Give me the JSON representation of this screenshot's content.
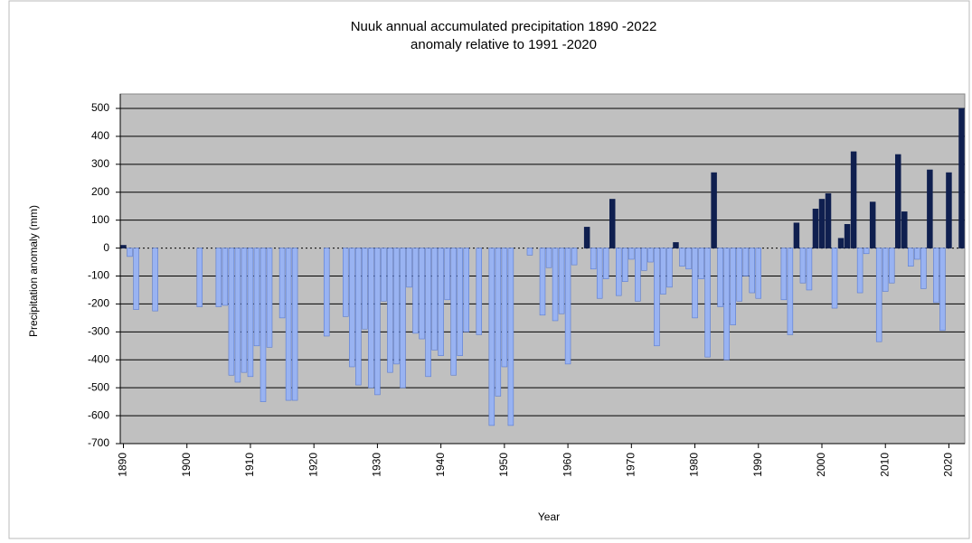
{
  "chart_data": {
    "type": "bar",
    "title": "Nuuk annual accumulated precipitation 1890  -2022",
    "subtitle": "anomaly relative to 1991  -2020",
    "x_label": "Year",
    "y_label": "Precipitation anomaly (mm)",
    "xlim": [
      1890,
      2022
    ],
    "xticks": [
      1890,
      1900,
      1910,
      1920,
      1930,
      1940,
      1950,
      1960,
      1970,
      1980,
      1990,
      2000,
      2010,
      2020
    ],
    "ylim": [
      -700,
      500
    ],
    "yticks": [
      -700,
      -600,
      -500,
      -400,
      -300,
      -200,
      -100,
      0,
      100,
      200,
      300,
      400,
      500
    ],
    "grid": true,
    "positive_color": "#0f1f4f",
    "negative_color": "#99b3f2",
    "x": [
      1890,
      1891,
      1892,
      1893,
      1894,
      1895,
      1896,
      1897,
      1898,
      1899,
      1900,
      1901,
      1902,
      1903,
      1904,
      1905,
      1906,
      1907,
      1908,
      1909,
      1910,
      1911,
      1912,
      1913,
      1914,
      1915,
      1916,
      1917,
      1918,
      1919,
      1920,
      1921,
      1922,
      1923,
      1924,
      1925,
      1926,
      1927,
      1928,
      1929,
      1930,
      1931,
      1932,
      1933,
      1934,
      1935,
      1936,
      1937,
      1938,
      1939,
      1940,
      1941,
      1942,
      1943,
      1944,
      1945,
      1946,
      1947,
      1948,
      1949,
      1950,
      1951,
      1952,
      1953,
      1954,
      1955,
      1956,
      1957,
      1958,
      1959,
      1960,
      1961,
      1962,
      1963,
      1964,
      1965,
      1966,
      1967,
      1968,
      1969,
      1970,
      1971,
      1972,
      1973,
      1974,
      1975,
      1976,
      1977,
      1978,
      1979,
      1980,
      1981,
      1982,
      1983,
      1984,
      1985,
      1986,
      1987,
      1988,
      1989,
      1990,
      1991,
      1992,
      1993,
      1994,
      1995,
      1996,
      1997,
      1998,
      1999,
      2000,
      2001,
      2002,
      2003,
      2004,
      2005,
      2006,
      2007,
      2008,
      2009,
      2010,
      2011,
      2012,
      2013,
      2014,
      2015,
      2016,
      2017,
      2018,
      2019,
      2020,
      2021,
      2022
    ],
    "values": [
      10,
      -30,
      -220,
      null,
      null,
      -225,
      null,
      null,
      null,
      null,
      null,
      null,
      -210,
      null,
      null,
      -210,
      -205,
      -455,
      -480,
      -445,
      -460,
      -350,
      -550,
      -355,
      null,
      -250,
      -545,
      -545,
      null,
      null,
      null,
      null,
      -315,
      null,
      null,
      -245,
      -425,
      -490,
      -290,
      -500,
      -525,
      -190,
      -445,
      -415,
      -500,
      -140,
      -305,
      -325,
      -460,
      -365,
      -385,
      -185,
      -455,
      -385,
      -300,
      null,
      -310,
      null,
      -635,
      -530,
      -425,
      -635,
      null,
      null,
      -25,
      null,
      -240,
      -70,
      -260,
      -235,
      -415,
      -60,
      null,
      75,
      -75,
      -180,
      -110,
      175,
      -170,
      -120,
      -40,
      -190,
      -80,
      -50,
      -350,
      -165,
      -140,
      20,
      -65,
      -75,
      -250,
      -110,
      -390,
      270,
      -210,
      -400,
      -275,
      -190,
      -100,
      -160,
      -180,
      null,
      null,
      null,
      -185,
      -310,
      90,
      -125,
      -150,
      140,
      175,
      195,
      -215,
      35,
      85,
      345,
      -160,
      -20,
      165,
      -335,
      -155,
      -125,
      335,
      130,
      -65,
      -40,
      -145,
      280,
      -195,
      -295,
      270,
      null,
      500
    ]
  }
}
